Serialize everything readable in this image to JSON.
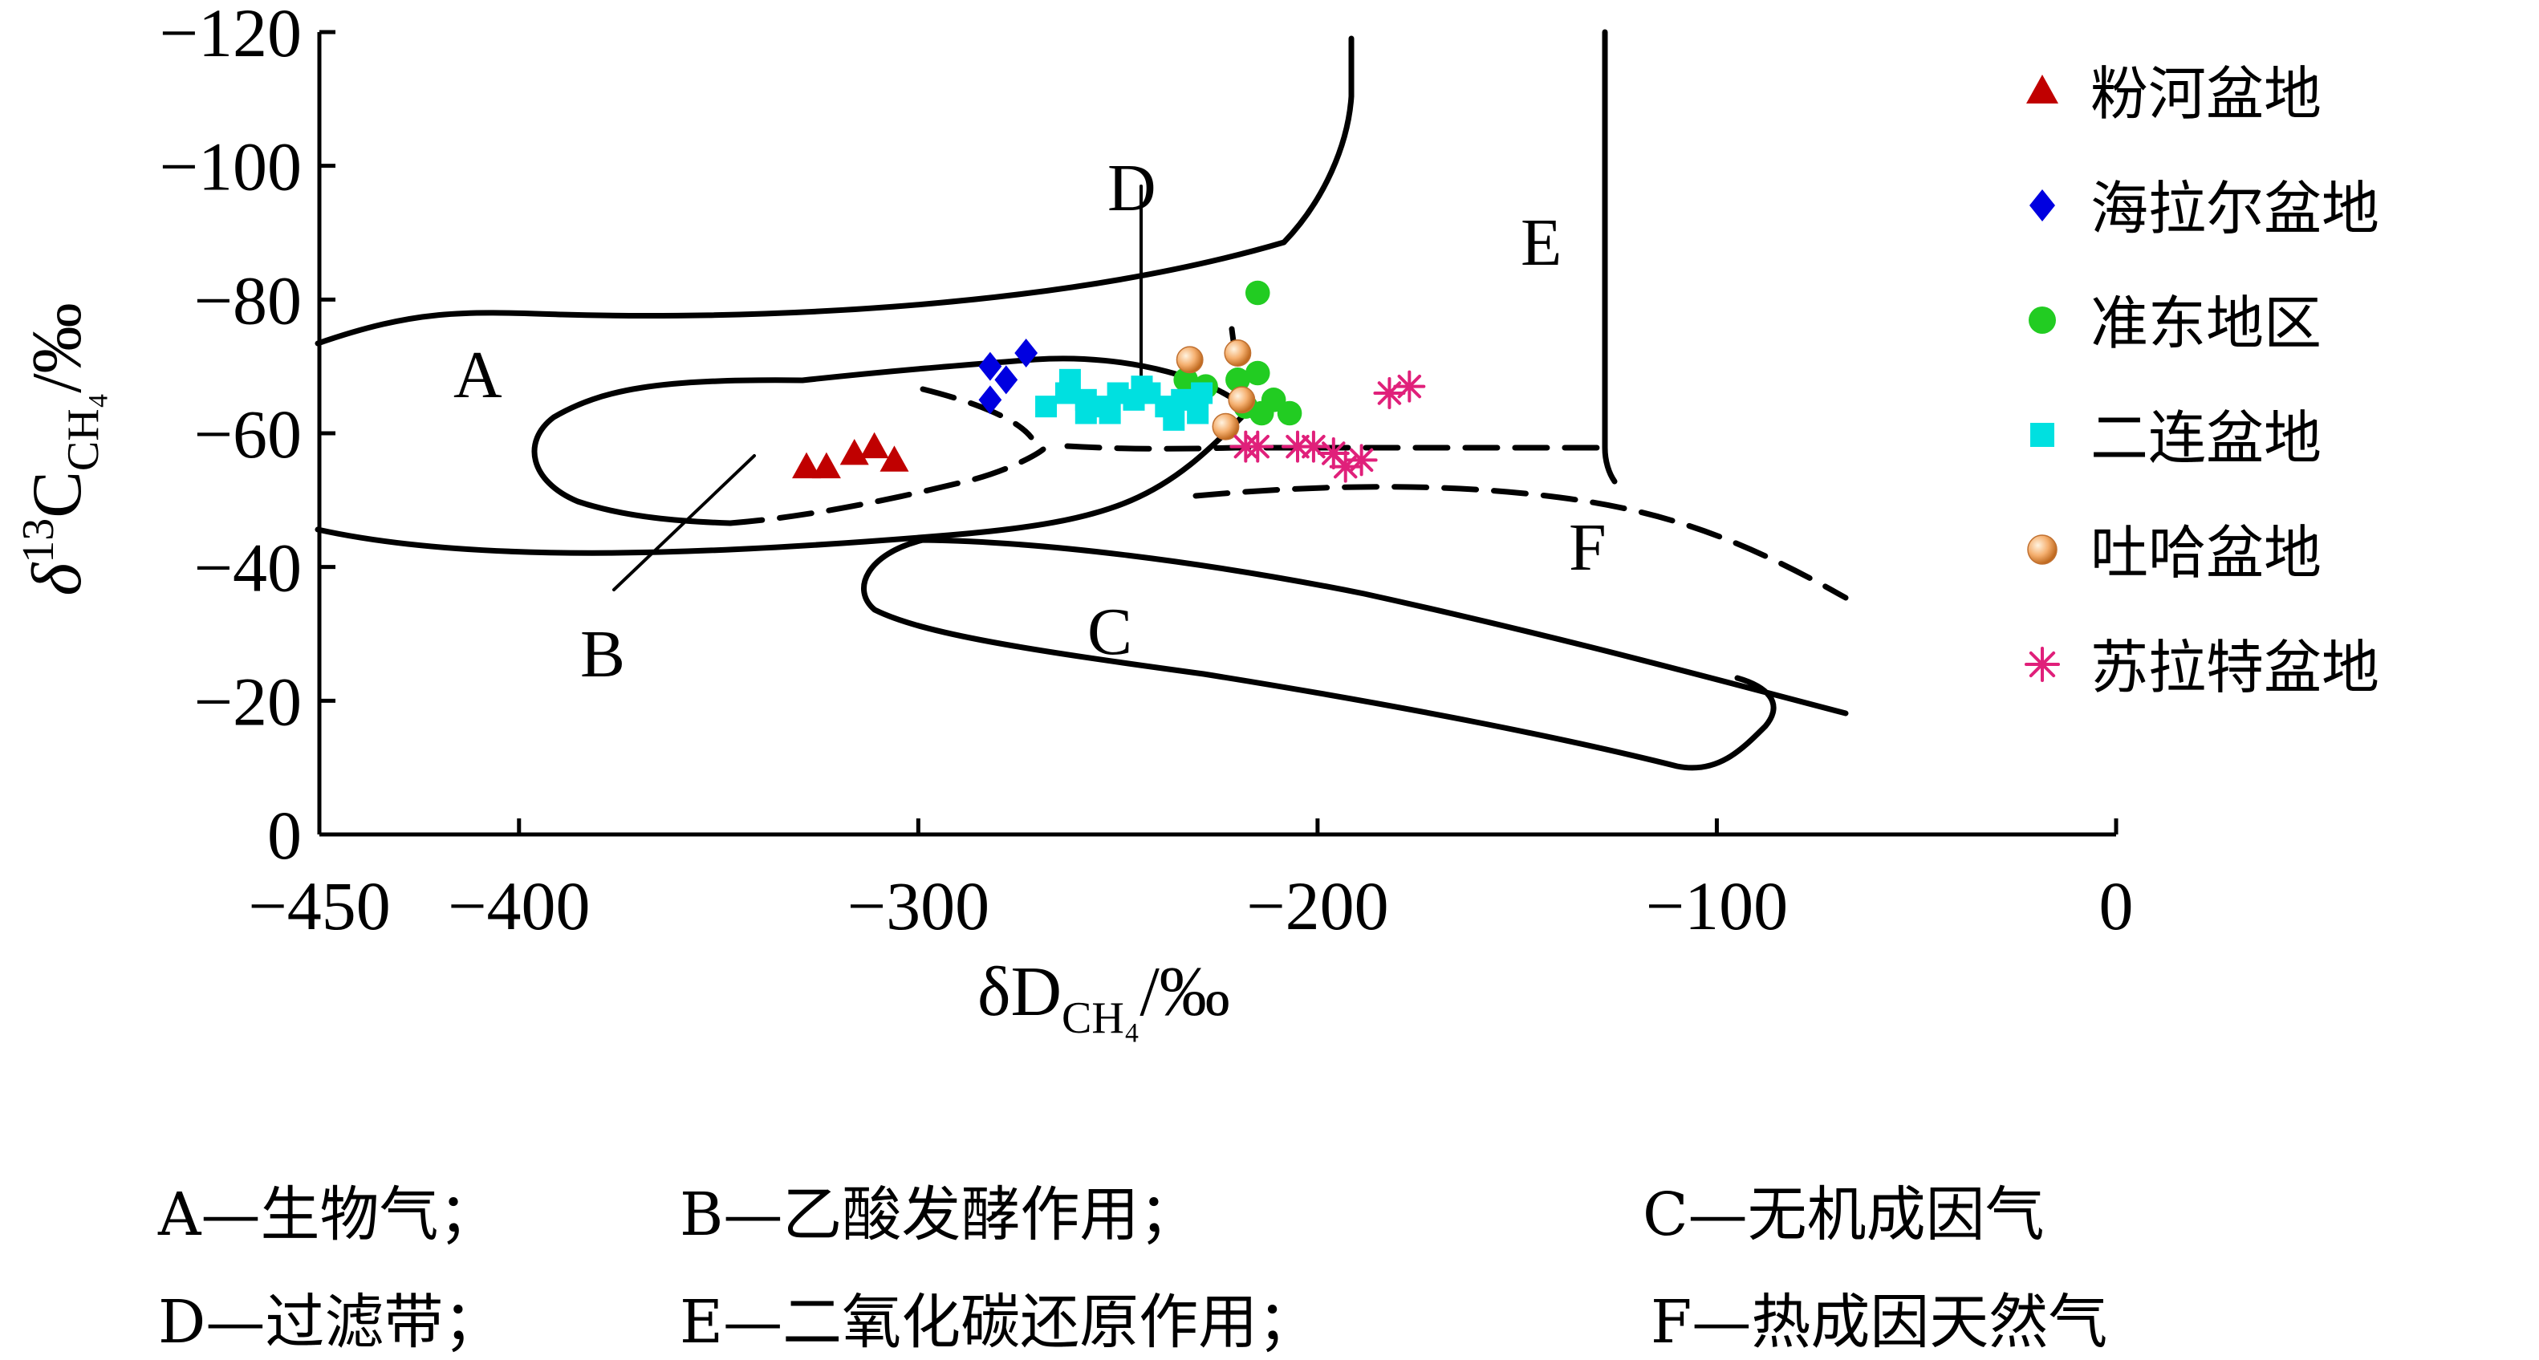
{
  "chart_data": {
    "type": "scatter",
    "title": "",
    "xlabel": "δD",
    "xlabel_sub": "CH₄",
    "xlabel_unit": "/‰",
    "ylabel_prefix": "δ",
    "ylabel_sup": "13",
    "ylabel": "C",
    "ylabel_sub": "CH₄",
    "ylabel_unit": "/‰",
    "xlim": [
      -450,
      0
    ],
    "ylim": [
      0,
      -120
    ],
    "x_ticks": [
      -450,
      -400,
      -300,
      -200,
      -100,
      0
    ],
    "x_tick_labels": [
      "−450",
      "−400",
      "−300",
      "−200",
      "−100",
      "0"
    ],
    "y_ticks": [
      0,
      -20,
      -40,
      -60,
      -80,
      -100,
      -120
    ],
    "y_tick_labels": [
      "0",
      "−20",
      "−40",
      "−60",
      "−80",
      "−100",
      "−120"
    ],
    "grid": false,
    "legend_position": "right",
    "series": [
      {
        "name": "粉河盆地",
        "marker": "triangle",
        "color": "#c00000",
        "points": [
          [
            -328,
            -55
          ],
          [
            -323,
            -55
          ],
          [
            -316,
            -57
          ],
          [
            -311,
            -58
          ],
          [
            -306,
            -56
          ]
        ]
      },
      {
        "name": "海拉尔盆地",
        "marker": "diamond",
        "color": "#0000e0",
        "points": [
          [
            -282,
            -70
          ],
          [
            -278,
            -68
          ],
          [
            -273,
            -72
          ],
          [
            -282,
            -65
          ]
        ]
      },
      {
        "name": "准东地区",
        "marker": "circle",
        "color": "#22cc22",
        "points": [
          [
            -215,
            -81
          ],
          [
            -233,
            -68
          ],
          [
            -228,
            -67
          ],
          [
            -220,
            -68
          ],
          [
            -215,
            -69
          ],
          [
            -218,
            -64
          ],
          [
            -211,
            -65
          ],
          [
            -207,
            -63
          ],
          [
            -214,
            -63
          ]
        ]
      },
      {
        "name": "二连盆地",
        "marker": "square",
        "color": "#00e0e0",
        "points": [
          [
            -268,
            -64
          ],
          [
            -263,
            -66
          ],
          [
            -258,
            -65
          ],
          [
            -255,
            -64
          ],
          [
            -250,
            -66
          ],
          [
            -246,
            -65
          ],
          [
            -242,
            -66
          ],
          [
            -238,
            -64
          ],
          [
            -234,
            -65
          ],
          [
            -230,
            -63
          ],
          [
            -262,
            -68
          ],
          [
            -252,
            -63
          ],
          [
            -244,
            -67
          ],
          [
            -236,
            -62
          ],
          [
            -229,
            -66
          ],
          [
            -258,
            -63
          ]
        ]
      },
      {
        "name": "吐哈盆地",
        "marker": "orange-ball",
        "color": "#f0a050",
        "points": [
          [
            -232,
            -71
          ],
          [
            -220,
            -72
          ],
          [
            -219,
            -65
          ],
          [
            -223,
            -61
          ]
        ]
      },
      {
        "name": "苏拉特盆地",
        "marker": "asterisk",
        "color": "#e0207a",
        "points": [
          [
            -218,
            -58
          ],
          [
            -215,
            -58
          ],
          [
            -205,
            -58
          ],
          [
            -201,
            -58
          ],
          [
            -196,
            -57
          ],
          [
            -193,
            -55
          ],
          [
            -189,
            -56
          ],
          [
            -182,
            -66
          ],
          [
            -177,
            -67
          ]
        ]
      }
    ],
    "annotations": [
      "A",
      "B",
      "C",
      "D",
      "E",
      "F"
    ]
  },
  "caption": {
    "line1": [
      "A—生物气；",
      "B—乙酸发酵作用；",
      "C—无机成因气"
    ],
    "line2": [
      "D—过滤带；",
      "E—二氧化碳还原作用；",
      "F—热成因天然气"
    ]
  }
}
